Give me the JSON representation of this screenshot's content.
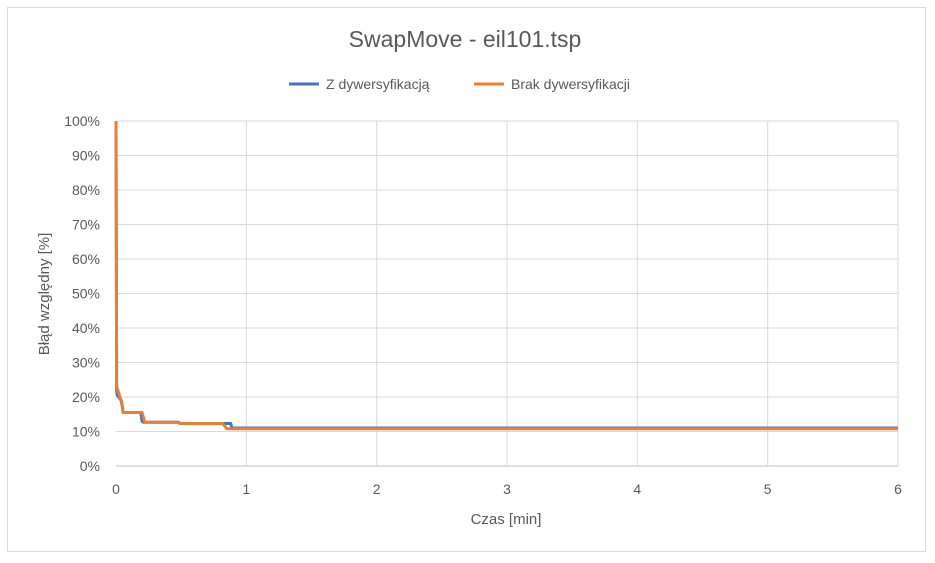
{
  "chart_data": {
    "type": "line",
    "title": "SwapMove - eil101.tsp",
    "xlabel": "Czas [min]",
    "ylabel": "Błąd względny [%]",
    "xlim": [
      0,
      6
    ],
    "ylim": [
      0,
      1
    ],
    "x_ticks": [
      0,
      1,
      2,
      3,
      4,
      5,
      6
    ],
    "x_tick_labels": [
      "0",
      "1",
      "2",
      "3",
      "4",
      "5",
      "6"
    ],
    "y_ticks": [
      0,
      0.1,
      0.2,
      0.3,
      0.4,
      0.5,
      0.6,
      0.7,
      0.8,
      0.9,
      1.0
    ],
    "y_tick_labels": [
      "0%",
      "10%",
      "20%",
      "30%",
      "40%",
      "50%",
      "60%",
      "70%",
      "80%",
      "90%",
      "100%"
    ],
    "grid": true,
    "legend_position": "top",
    "series": [
      {
        "name": "Z dywersyfikacją",
        "color": "#4472C4",
        "points": [
          [
            0.0,
            1.0
          ],
          [
            0.005,
            0.22
          ],
          [
            0.01,
            0.205
          ],
          [
            0.04,
            0.19
          ],
          [
            0.055,
            0.155
          ],
          [
            0.19,
            0.155
          ],
          [
            0.2,
            0.13
          ],
          [
            0.21,
            0.127
          ],
          [
            0.48,
            0.127
          ],
          [
            0.49,
            0.123
          ],
          [
            0.88,
            0.123
          ],
          [
            0.89,
            0.11
          ],
          [
            6.0,
            0.11
          ]
        ]
      },
      {
        "name": "Brak dywersyfikacji",
        "color": "#ED7D31",
        "points": [
          [
            0.0,
            1.0
          ],
          [
            0.005,
            0.23
          ],
          [
            0.03,
            0.2
          ],
          [
            0.045,
            0.185
          ],
          [
            0.055,
            0.155
          ],
          [
            0.19,
            0.155
          ],
          [
            0.2,
            0.155
          ],
          [
            0.22,
            0.127
          ],
          [
            0.48,
            0.127
          ],
          [
            0.49,
            0.123
          ],
          [
            0.82,
            0.123
          ],
          [
            0.85,
            0.108
          ],
          [
            6.0,
            0.108
          ]
        ]
      }
    ]
  }
}
